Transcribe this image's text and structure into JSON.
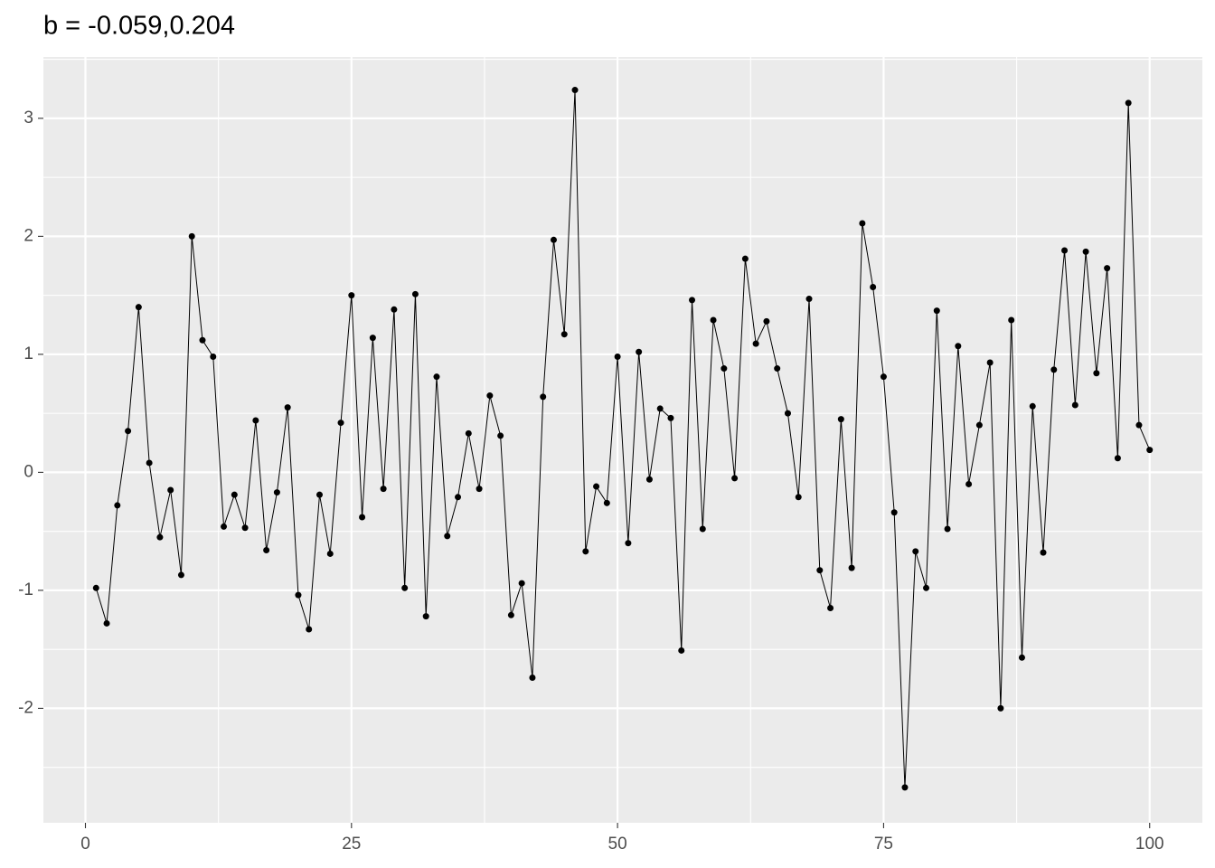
{
  "chart_data": {
    "type": "line",
    "title": "b = -0.059,0.204",
    "x": [
      1,
      2,
      3,
      4,
      5,
      6,
      7,
      8,
      9,
      10,
      11,
      12,
      13,
      14,
      15,
      16,
      17,
      18,
      19,
      20,
      21,
      22,
      23,
      24,
      25,
      26,
      27,
      28,
      29,
      30,
      31,
      32,
      33,
      34,
      35,
      36,
      37,
      38,
      39,
      40,
      41,
      42,
      43,
      44,
      45,
      46,
      47,
      48,
      49,
      50,
      51,
      52,
      53,
      54,
      55,
      56,
      57,
      58,
      59,
      60,
      61,
      62,
      63,
      64,
      65,
      66,
      67,
      68,
      69,
      70,
      71,
      72,
      73,
      74,
      75,
      76,
      77,
      78,
      79,
      80,
      81,
      82,
      83,
      84,
      85,
      86,
      87,
      88,
      89,
      90,
      91,
      92,
      93,
      94,
      95,
      96,
      97,
      98,
      99,
      100
    ],
    "series": [
      {
        "color": "#000000",
        "values": [
          -0.98,
          -1.28,
          -0.28,
          0.35,
          1.4,
          0.08,
          -0.55,
          -0.15,
          -0.87,
          2.0,
          1.12,
          0.98,
          -0.46,
          -0.19,
          -0.47,
          0.44,
          -0.66,
          -0.17,
          0.55,
          -1.04,
          -1.33,
          -0.19,
          -0.69,
          0.42,
          1.5,
          -0.38,
          1.14,
          -0.14,
          1.38,
          -0.98,
          1.51,
          -1.22,
          0.81,
          -0.54,
          -0.21,
          0.33,
          -0.14,
          0.65,
          0.31,
          -1.21,
          -0.94,
          -1.74,
          0.64,
          1.97,
          1.17,
          3.24,
          -0.67,
          -0.12,
          -0.26,
          0.98,
          -0.6,
          1.02,
          -0.06,
          0.54,
          0.46,
          -1.51,
          1.46,
          -0.48,
          1.29,
          0.88,
          -0.05,
          1.81,
          1.09,
          1.28,
          0.88,
          0.5,
          -0.21,
          1.47,
          -0.83,
          -1.15,
          0.45,
          -0.81,
          2.11,
          1.57,
          0.81,
          -0.34,
          -2.67,
          -0.67,
          -0.98,
          1.37,
          -0.48,
          1.07,
          -0.1,
          0.4,
          0.93,
          -2.0,
          1.29,
          -1.57,
          0.56,
          -0.68,
          0.87,
          1.88,
          0.57,
          1.87,
          0.84,
          1.73,
          0.12,
          3.13,
          0.4,
          0.19
        ]
      }
    ],
    "xlim": [
      -3.95,
      104.95
    ],
    "ylim": [
      -2.97,
      3.52
    ],
    "xticks": [
      0,
      25,
      50,
      75,
      100
    ],
    "yticks": [
      -2,
      -1,
      0,
      1,
      2,
      3
    ],
    "grid": true,
    "minor_grid": true,
    "markers": true
  }
}
